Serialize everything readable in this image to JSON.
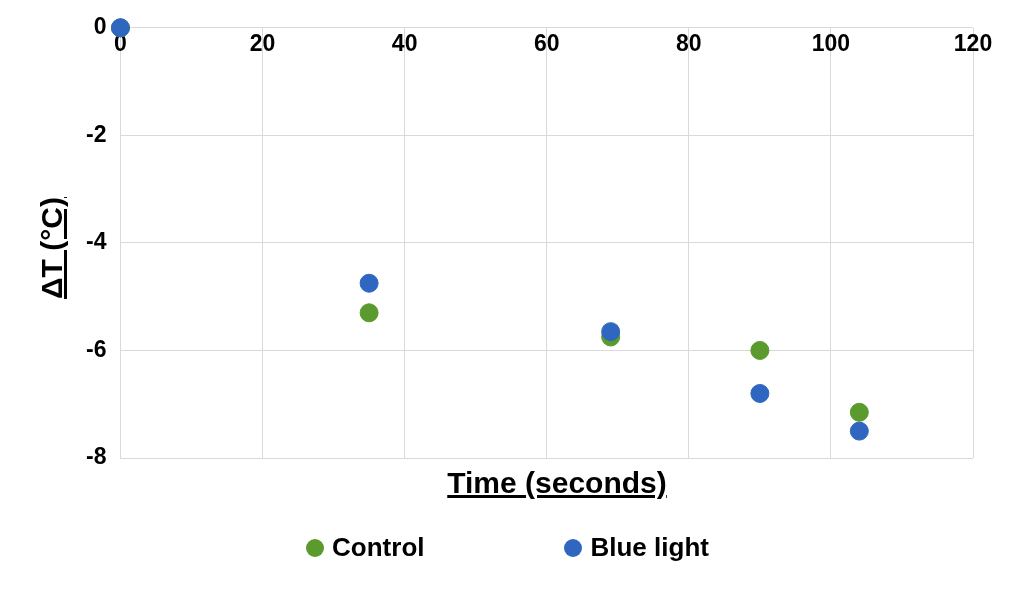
{
  "chart_data": {
    "type": "scatter",
    "xlabel": "Time (seconds)",
    "ylabel": "ΔT (°C)",
    "x": [
      0,
      35,
      69,
      90,
      104
    ],
    "series": [
      {
        "name": "Control",
        "color": "#5b9a2c",
        "values": [
          0,
          -5.3,
          -5.75,
          -6.0,
          -7.15
        ]
      },
      {
        "name": "Blue light",
        "color": "#2f67c0",
        "values": [
          0,
          -4.75,
          -5.65,
          -6.8,
          -7.5
        ]
      }
    ],
    "xlim": [
      0,
      120
    ],
    "xticks": [
      0,
      20,
      40,
      60,
      80,
      100,
      120
    ],
    "ylim": [
      -8,
      0
    ],
    "yticks": [
      -8,
      -6,
      -4,
      -2,
      0
    ],
    "grid": true,
    "legend": "bottom",
    "marker": "circle"
  }
}
